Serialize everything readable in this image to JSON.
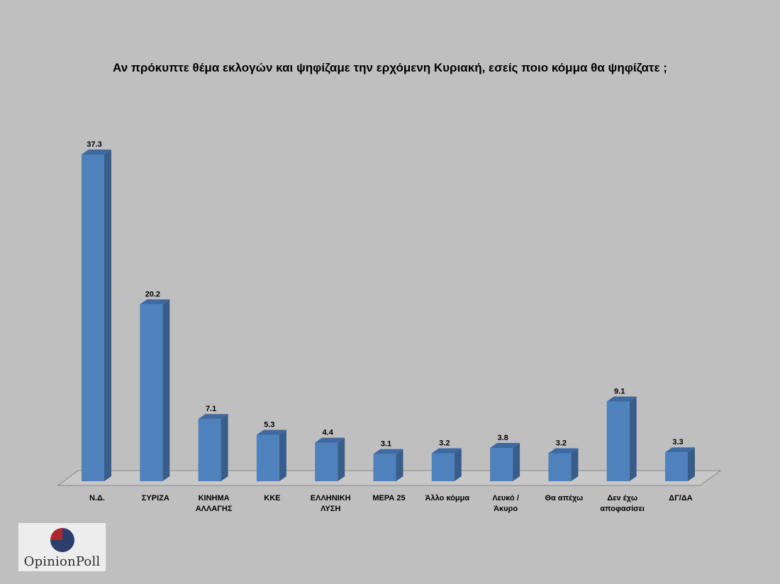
{
  "chart_data": {
    "type": "bar",
    "title": "Αν πρόκυπτε θέμα εκλογών και ψηφίζαμε την ερχόμενη Κυριακή, εσείς ποιο κόμμα θα ψηφίζατε ;",
    "categories": [
      [
        "Ν.Δ."
      ],
      [
        "ΣΥΡΙΖΑ"
      ],
      [
        "ΚΙΝΗΜΑ",
        "ΑΛΛΑΓΗΣ"
      ],
      [
        "ΚΚΕ"
      ],
      [
        "ΕΛΛΗΝΙΚΗ",
        "ΛΥΣΗ"
      ],
      [
        "ΜΕΡΑ 25"
      ],
      [
        "Άλλο κόμμα"
      ],
      [
        "Λευκό /",
        "Άκυρο"
      ],
      [
        "Θα απέχω"
      ],
      [
        "Δεν έχω",
        "αποφασίσει"
      ],
      [
        "ΔΓ/ΔΑ"
      ]
    ],
    "values": [
      37.3,
      20.2,
      7.1,
      5.3,
      4.4,
      3.1,
      3.2,
      3.8,
      3.2,
      9.1,
      3.3
    ],
    "value_labels": [
      "37.3",
      "20.2",
      "7.1",
      "5.3",
      "4.4",
      "3.1",
      "3.2",
      "3.8",
      "3.2",
      "9.1",
      "3.3"
    ],
    "ylim": [
      0,
      40
    ],
    "bar_color": "#4f81bd",
    "grid": false,
    "legend": "none"
  },
  "logo": {
    "text": "OpinionPoll",
    "colors": {
      "red": "#b0282f",
      "navy": "#2c3e6b"
    }
  }
}
